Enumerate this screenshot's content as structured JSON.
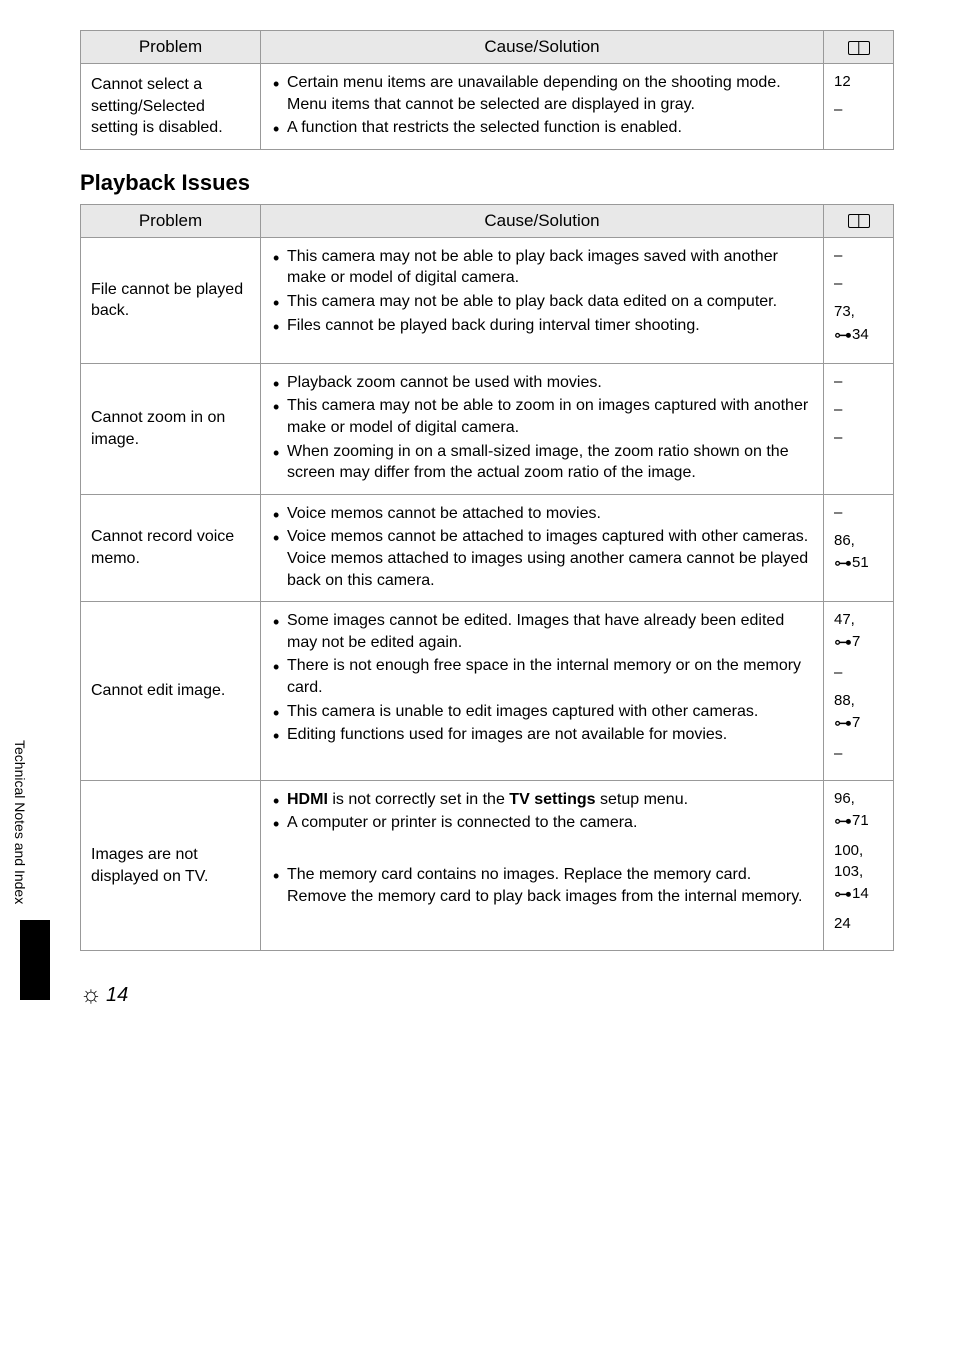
{
  "headers": {
    "problem": "Problem",
    "cause": "Cause/Solution"
  },
  "section_title": "Playback Issues",
  "table1": {
    "rows": [
      {
        "problem": "Cannot select a setting/Selected setting is disabled.",
        "causes": [
          "Certain menu items are unavailable depending on the shooting mode. Menu items that cannot be selected are displayed in gray.",
          "A function that restricts the selected function is enabled."
        ],
        "refs": [
          {
            "plain": "12"
          },
          {
            "plain": "–"
          }
        ]
      }
    ]
  },
  "table2": {
    "rows": [
      {
        "problem": "File cannot be played back.",
        "causes": [
          "This camera may not be able to play back images saved with another make or model of digital camera.",
          "This camera may not be able to play back data edited on a computer.",
          "Files cannot be played back during interval timer shooting."
        ],
        "refs": [
          {
            "plain": "–"
          },
          {
            "plain": "–"
          },
          {
            "plain": "73,",
            "link": "34"
          }
        ]
      },
      {
        "problem": "Cannot zoom in on image.",
        "causes": [
          "Playback zoom cannot be used with movies.",
          "This camera may not be able to zoom in on images captured with another make or model of digital camera.",
          "When zooming in on a small-sized image, the zoom ratio shown on the screen may differ from the actual zoom ratio of the image."
        ],
        "refs": [
          {
            "plain": "–"
          },
          {
            "plain": "–"
          },
          {
            "plain": "–"
          }
        ]
      },
      {
        "problem": "Cannot record voice memo.",
        "causes": [
          "Voice memos cannot be attached to movies.",
          "Voice memos cannot be attached to images captured with other cameras. Voice memos attached to images using another camera cannot be played back on this camera."
        ],
        "refs": [
          {
            "plain": "–"
          },
          {
            "plain": "86,",
            "link": "51"
          }
        ]
      },
      {
        "problem": "Cannot edit image.",
        "causes": [
          "Some images cannot be edited. Images that have already been edited may not be edited again.",
          "There is not enough free space in the internal memory or on the memory card.",
          "This camera is unable to edit images captured with other cameras.",
          "Editing functions used for images are not available for movies."
        ],
        "refs": [
          {
            "plain": "47,",
            "link": "7"
          },
          {
            "plain": "–"
          },
          {
            "plain": "88,",
            "link": "7"
          },
          {
            "plain": "–"
          }
        ]
      },
      {
        "problem": "Images are not displayed on TV.",
        "causes": [
          "<b>HDMI</b> is not correctly set in the <b>TV settings</b> setup menu.",
          "A computer or printer is connected to the camera.",
          "The memory card contains no images. Replace the memory card. Remove the memory card to play back images from the internal memory."
        ],
        "causes_html": true,
        "spaced_before": [
          2
        ],
        "refs": [
          {
            "plain": "96,",
            "link": "71"
          },
          {
            "plain": "100, 103,",
            "link": "14"
          },
          {
            "plain": "24"
          }
        ]
      }
    ]
  },
  "sidebar_label": "Technical Notes and Index",
  "page_number": "14"
}
